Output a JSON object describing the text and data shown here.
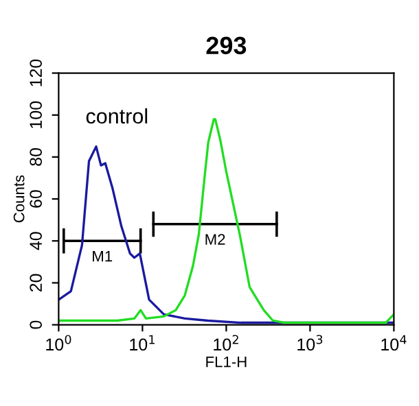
{
  "chart_data": {
    "type": "line",
    "title": "293",
    "xlabel": "FL1-H",
    "ylabel": "Counts",
    "log": "x",
    "xlim": [
      1,
      10000
    ],
    "ylim": [
      0,
      120
    ],
    "xticks": [
      {
        "value": 1,
        "label": "10$^{0}$"
      },
      {
        "value": 10,
        "label": "10$^{1}$"
      },
      {
        "value": 100,
        "label": "10$^{2}$"
      },
      {
        "value": 1000,
        "label": "10$^{3}$"
      },
      {
        "value": 10000,
        "label": "10$^{4}$"
      }
    ],
    "yticks": [
      0,
      20,
      40,
      60,
      80,
      100,
      120
    ],
    "grid": false,
    "legend": false,
    "annotations": [
      "control"
    ],
    "series": [
      {
        "name": "M1",
        "color": "#000000",
        "x": [
          1.15,
          9.5
        ],
        "values": [
          40,
          40
        ],
        "errors": [
          6,
          6
        ]
      },
      {
        "name": "M2",
        "color": "#000000",
        "x": [
          13.5,
          400
        ],
        "values": [
          48,
          48
        ],
        "errors": [
          6,
          6
        ]
      },
      {
        "color": "#1a1aa0",
        "x": [
          1,
          1.4,
          1.9,
          2.3,
          2.8,
          3.2,
          3.6,
          4.4,
          5.6,
          7.1,
          8,
          9.3,
          12,
          18,
          32,
          60,
          150,
          400,
          1000,
          3000,
          10000
        ],
        "values": [
          12,
          16,
          38,
          78,
          85,
          76,
          77,
          65,
          47,
          34,
          32,
          34,
          12,
          5,
          3,
          2,
          1,
          1,
          1,
          1,
          1
        ]
      },
      {
        "color": "#22dd22",
        "x": [
          1,
          2,
          5,
          8,
          9.5,
          11,
          18,
          25,
          32,
          40,
          47,
          55,
          61,
          71,
          74,
          85,
          100,
          145,
          190,
          280,
          360,
          500,
          1000,
          3000,
          8000,
          10000
        ],
        "values": [
          2,
          2,
          2,
          3,
          7,
          3,
          4,
          7,
          14,
          28,
          43,
          70,
          87,
          98,
          98,
          88,
          73,
          43,
          18,
          7,
          2,
          1,
          1,
          1,
          1,
          5
        ]
      }
    ]
  }
}
